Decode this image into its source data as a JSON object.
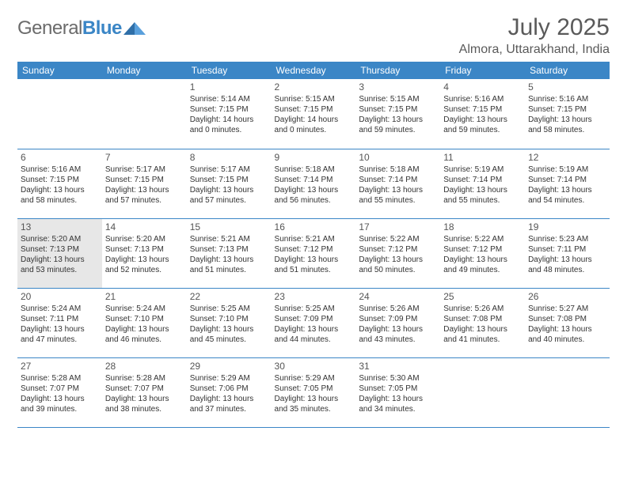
{
  "logo": {
    "text1": "General",
    "text2": "Blue"
  },
  "title": "July 2025",
  "location": "Almora, Uttarakhand, India",
  "colors": {
    "header_bg": "#3b86c6",
    "header_fg": "#ffffff",
    "border": "#3b86c6",
    "today_bg": "#e7e7e7",
    "text": "#333333",
    "title_color": "#5a5a5a"
  },
  "day_names": [
    "Sunday",
    "Monday",
    "Tuesday",
    "Wednesday",
    "Thursday",
    "Friday",
    "Saturday"
  ],
  "weeks": [
    [
      null,
      null,
      {
        "n": "1",
        "sr": "5:14 AM",
        "ss": "7:15 PM",
        "dl": "14 hours and 0 minutes."
      },
      {
        "n": "2",
        "sr": "5:15 AM",
        "ss": "7:15 PM",
        "dl": "14 hours and 0 minutes."
      },
      {
        "n": "3",
        "sr": "5:15 AM",
        "ss": "7:15 PM",
        "dl": "13 hours and 59 minutes."
      },
      {
        "n": "4",
        "sr": "5:16 AM",
        "ss": "7:15 PM",
        "dl": "13 hours and 59 minutes."
      },
      {
        "n": "5",
        "sr": "5:16 AM",
        "ss": "7:15 PM",
        "dl": "13 hours and 58 minutes."
      }
    ],
    [
      {
        "n": "6",
        "sr": "5:16 AM",
        "ss": "7:15 PM",
        "dl": "13 hours and 58 minutes."
      },
      {
        "n": "7",
        "sr": "5:17 AM",
        "ss": "7:15 PM",
        "dl": "13 hours and 57 minutes."
      },
      {
        "n": "8",
        "sr": "5:17 AM",
        "ss": "7:15 PM",
        "dl": "13 hours and 57 minutes."
      },
      {
        "n": "9",
        "sr": "5:18 AM",
        "ss": "7:14 PM",
        "dl": "13 hours and 56 minutes."
      },
      {
        "n": "10",
        "sr": "5:18 AM",
        "ss": "7:14 PM",
        "dl": "13 hours and 55 minutes."
      },
      {
        "n": "11",
        "sr": "5:19 AM",
        "ss": "7:14 PM",
        "dl": "13 hours and 55 minutes."
      },
      {
        "n": "12",
        "sr": "5:19 AM",
        "ss": "7:14 PM",
        "dl": "13 hours and 54 minutes."
      }
    ],
    [
      {
        "n": "13",
        "sr": "5:20 AM",
        "ss": "7:13 PM",
        "dl": "13 hours and 53 minutes.",
        "today": true
      },
      {
        "n": "14",
        "sr": "5:20 AM",
        "ss": "7:13 PM",
        "dl": "13 hours and 52 minutes."
      },
      {
        "n": "15",
        "sr": "5:21 AM",
        "ss": "7:13 PM",
        "dl": "13 hours and 51 minutes."
      },
      {
        "n": "16",
        "sr": "5:21 AM",
        "ss": "7:12 PM",
        "dl": "13 hours and 51 minutes."
      },
      {
        "n": "17",
        "sr": "5:22 AM",
        "ss": "7:12 PM",
        "dl": "13 hours and 50 minutes."
      },
      {
        "n": "18",
        "sr": "5:22 AM",
        "ss": "7:12 PM",
        "dl": "13 hours and 49 minutes."
      },
      {
        "n": "19",
        "sr": "5:23 AM",
        "ss": "7:11 PM",
        "dl": "13 hours and 48 minutes."
      }
    ],
    [
      {
        "n": "20",
        "sr": "5:24 AM",
        "ss": "7:11 PM",
        "dl": "13 hours and 47 minutes."
      },
      {
        "n": "21",
        "sr": "5:24 AM",
        "ss": "7:10 PM",
        "dl": "13 hours and 46 minutes."
      },
      {
        "n": "22",
        "sr": "5:25 AM",
        "ss": "7:10 PM",
        "dl": "13 hours and 45 minutes."
      },
      {
        "n": "23",
        "sr": "5:25 AM",
        "ss": "7:09 PM",
        "dl": "13 hours and 44 minutes."
      },
      {
        "n": "24",
        "sr": "5:26 AM",
        "ss": "7:09 PM",
        "dl": "13 hours and 43 minutes."
      },
      {
        "n": "25",
        "sr": "5:26 AM",
        "ss": "7:08 PM",
        "dl": "13 hours and 41 minutes."
      },
      {
        "n": "26",
        "sr": "5:27 AM",
        "ss": "7:08 PM",
        "dl": "13 hours and 40 minutes."
      }
    ],
    [
      {
        "n": "27",
        "sr": "5:28 AM",
        "ss": "7:07 PM",
        "dl": "13 hours and 39 minutes."
      },
      {
        "n": "28",
        "sr": "5:28 AM",
        "ss": "7:07 PM",
        "dl": "13 hours and 38 minutes."
      },
      {
        "n": "29",
        "sr": "5:29 AM",
        "ss": "7:06 PM",
        "dl": "13 hours and 37 minutes."
      },
      {
        "n": "30",
        "sr": "5:29 AM",
        "ss": "7:05 PM",
        "dl": "13 hours and 35 minutes."
      },
      {
        "n": "31",
        "sr": "5:30 AM",
        "ss": "7:05 PM",
        "dl": "13 hours and 34 minutes."
      },
      null,
      null
    ]
  ],
  "labels": {
    "sunrise": "Sunrise:",
    "sunset": "Sunset:",
    "daylight": "Daylight:"
  }
}
